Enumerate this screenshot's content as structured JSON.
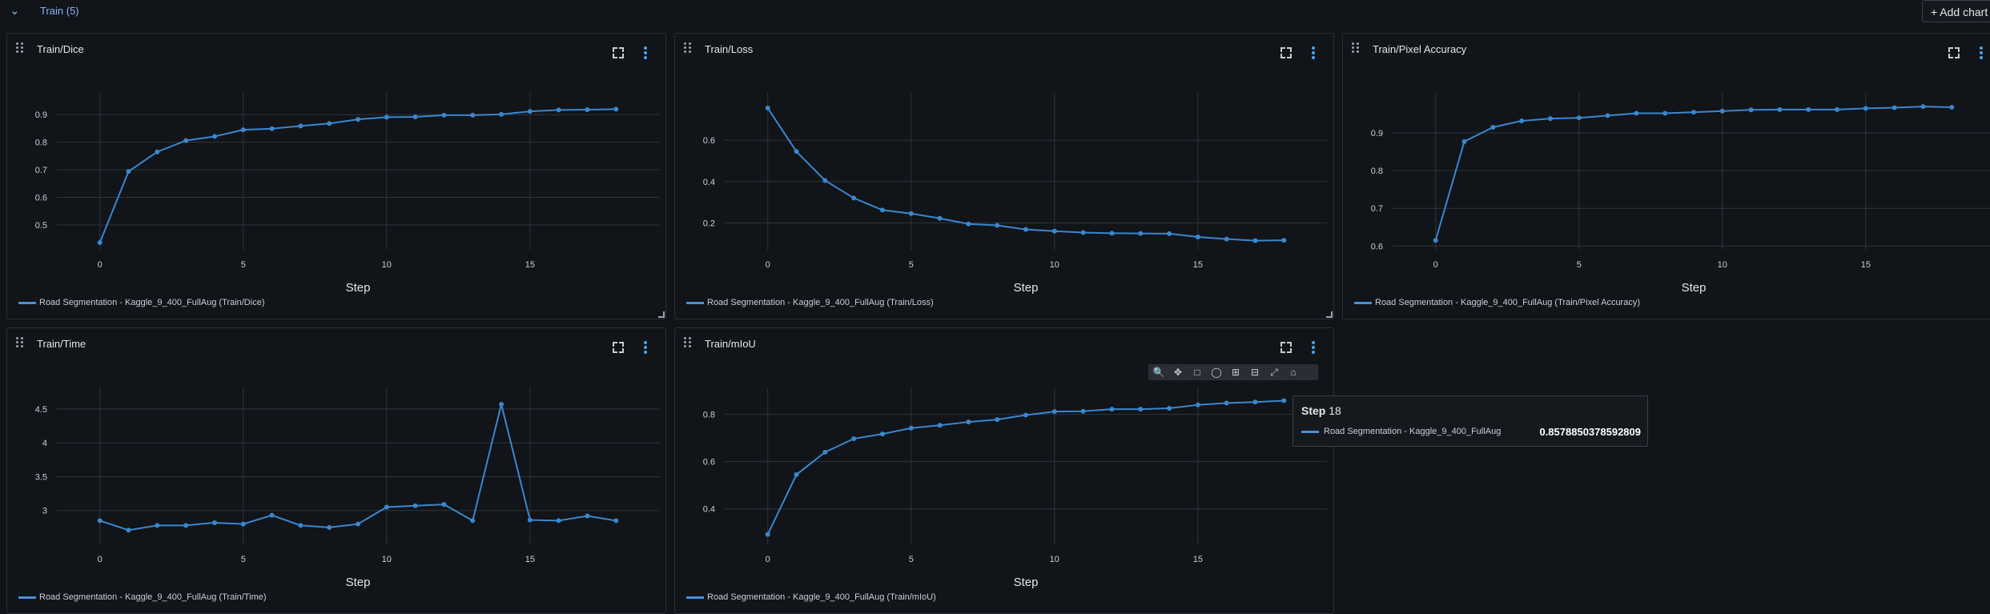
{
  "section": {
    "title": "Train (5)",
    "add_label": "+ Add chart"
  },
  "colors": {
    "line": "#3a87d0",
    "grid": "#2f353d",
    "axis_text": "#c9d1d9"
  },
  "icons": [
    "drag-handle-icon",
    "fullscreen-icon",
    "more-vert-icon",
    "chevron-down-icon",
    "plus-icon",
    "zoom-icon",
    "pan-icon",
    "box-select-icon",
    "lasso-select-icon",
    "zoom-in-icon",
    "zoom-out-icon",
    "autoscale-icon",
    "reset-axes-icon"
  ],
  "tooltip": {
    "step_label": "Step",
    "step_value": "18",
    "series": "Road Segmentation - Kaggle_9_400_FullAug",
    "value": "0.8578850378592809"
  },
  "chart_data": [
    {
      "type": "line",
      "title": "Train/Dice",
      "xlabel": "Step",
      "xlim": [
        -1.5,
        19.5
      ],
      "ylim": [
        0.41,
        0.95
      ],
      "xticks": [
        0,
        5,
        10,
        15
      ],
      "yticks": [
        0.5,
        0.6,
        0.7,
        0.8,
        0.9
      ],
      "series": [
        {
          "name": "Road Segmentation - Kaggle_9_400_FullAug (Train/Dice)",
          "x": [
            0,
            1,
            2,
            3,
            4,
            5,
            6,
            7,
            8,
            9,
            10,
            11,
            12,
            13,
            14,
            15,
            16,
            17,
            18
          ],
          "y": [
            0.436,
            0.694,
            0.765,
            0.806,
            0.821,
            0.845,
            0.849,
            0.859,
            0.868,
            0.883,
            0.891,
            0.892,
            0.898,
            0.898,
            0.901,
            0.912,
            0.917,
            0.918,
            0.92
          ]
        }
      ]
    },
    {
      "type": "line",
      "title": "Train/Loss",
      "xlabel": "Step",
      "xlim": [
        -1.5,
        19.5
      ],
      "ylim": [
        0.07,
        0.79
      ],
      "xticks": [
        0,
        5,
        10,
        15
      ],
      "yticks": [
        0.2,
        0.4,
        0.6
      ],
      "series": [
        {
          "name": "Road Segmentation - Kaggle_9_400_FullAug (Train/Loss)",
          "x": [
            0,
            1,
            2,
            3,
            4,
            5,
            6,
            7,
            8,
            9,
            10,
            11,
            12,
            13,
            14,
            15,
            16,
            17,
            18
          ],
          "y": [
            0.755,
            0.545,
            0.405,
            0.32,
            0.262,
            0.245,
            0.222,
            0.195,
            0.188,
            0.168,
            0.16,
            0.153,
            0.15,
            0.149,
            0.148,
            0.132,
            0.122,
            0.114,
            0.116
          ]
        }
      ]
    },
    {
      "type": "line",
      "title": "Train/Pixel Accuracy",
      "xlabel": "Step",
      "xlim": [
        -1.5,
        19.5
      ],
      "ylim": [
        0.59,
        0.985
      ],
      "xticks": [
        0,
        5,
        10,
        15
      ],
      "yticks": [
        0.6,
        0.7,
        0.8,
        0.9
      ],
      "series": [
        {
          "name": "Road Segmentation - Kaggle_9_400_FullAug (Train/Pixel Accuracy)",
          "x": [
            0,
            1,
            2,
            3,
            4,
            5,
            6,
            7,
            8,
            9,
            10,
            11,
            12,
            13,
            14,
            15,
            16,
            17,
            18
          ],
          "y": [
            0.615,
            0.877,
            0.915,
            0.932,
            0.938,
            0.94,
            0.946,
            0.952,
            0.952,
            0.955,
            0.958,
            0.961,
            0.962,
            0.962,
            0.962,
            0.965,
            0.967,
            0.97,
            0.968
          ]
        }
      ]
    },
    {
      "type": "line",
      "title": "Train/Time",
      "xlabel": "Step",
      "xlim": [
        -1.5,
        19.5
      ],
      "ylim": [
        2.5,
        4.7
      ],
      "xticks": [
        0,
        5,
        10,
        15
      ],
      "yticks": [
        3,
        3.5,
        4,
        4.5
      ],
      "series": [
        {
          "name": "Road Segmentation - Kaggle_9_400_FullAug (Train/Time)",
          "x": [
            0,
            1,
            2,
            3,
            4,
            5,
            6,
            7,
            8,
            9,
            10,
            11,
            12,
            13,
            14,
            15,
            16,
            17,
            18
          ],
          "y": [
            2.85,
            2.71,
            2.78,
            2.78,
            2.82,
            2.8,
            2.93,
            2.78,
            2.75,
            2.8,
            3.05,
            3.07,
            3.09,
            2.85,
            4.57,
            2.86,
            2.85,
            2.92,
            2.85
          ]
        }
      ]
    },
    {
      "type": "line",
      "title": "Train/mIoU",
      "xlabel": "Step",
      "xlim": [
        -1.5,
        19.5
      ],
      "ylim": [
        0.25,
        0.88
      ],
      "xticks": [
        0,
        5,
        10,
        15
      ],
      "yticks": [
        0.4,
        0.6,
        0.8
      ],
      "series": [
        {
          "name": "Road Segmentation - Kaggle_9_400_FullAug (Train/mIoU)",
          "x": [
            0,
            1,
            2,
            3,
            4,
            5,
            6,
            7,
            8,
            9,
            10,
            11,
            12,
            13,
            14,
            15,
            16,
            17,
            18
          ],
          "y": [
            0.292,
            0.545,
            0.64,
            0.697,
            0.717,
            0.742,
            0.754,
            0.768,
            0.778,
            0.797,
            0.812,
            0.813,
            0.822,
            0.822,
            0.826,
            0.84,
            0.848,
            0.852,
            0.858
          ]
        }
      ]
    }
  ]
}
